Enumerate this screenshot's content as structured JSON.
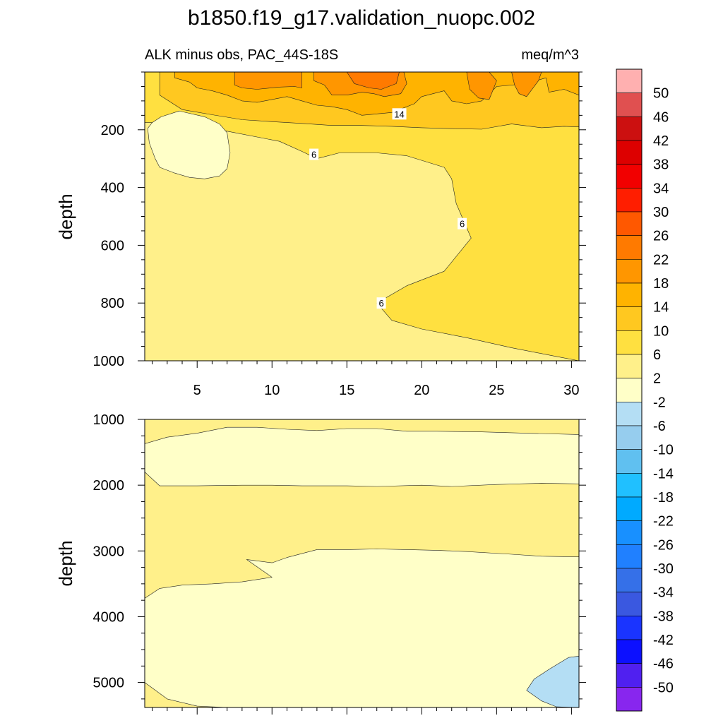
{
  "title": "b1850.f19_g17.validation_nuopc.002",
  "chart_data": [
    {
      "type": "heatmap",
      "subplot": "upper",
      "subtitle_left": "ALK minus obs, PAC_44S-18S",
      "subtitle_right": "meq/m^3",
      "xlabel": "",
      "ylabel": "depth",
      "xlim": [
        1.5,
        30.5
      ],
      "ylim": [
        1000,
        0
      ],
      "xticks": [
        5,
        10,
        15,
        20,
        25,
        30
      ],
      "xtick_labels": [
        "5",
        "10",
        "15",
        "20",
        "25",
        "30"
      ],
      "yticks": [
        200,
        400,
        600,
        800,
        1000
      ],
      "ytick_labels": [
        "200",
        "400",
        "600",
        "800",
        "1000"
      ],
      "contour_labels": [
        {
          "text": "14",
          "x": 18.5,
          "y": 145
        },
        {
          "text": "6",
          "x": 12.8,
          "y": 285
        },
        {
          "text": "6",
          "x": 22.7,
          "y": 525
        },
        {
          "text": "6",
          "x": 17.3,
          "y": 800
        }
      ],
      "regions": [
        {
          "range": "2 to 6",
          "points": [
            [
              1.5,
              0
            ],
            [
              30.5,
              0
            ],
            [
              30.5,
              1000
            ],
            [
              1.5,
              1000
            ]
          ]
        },
        {
          "range": "6 to 10",
          "points": [
            [
              1.5,
              0
            ],
            [
              30.5,
              0
            ],
            [
              30.5,
              1000
            ],
            [
              29,
              985
            ],
            [
              26,
              955
            ],
            [
              23,
              920
            ],
            [
              20,
              890
            ],
            [
              18,
              860
            ],
            [
              17,
              800
            ],
            [
              19,
              740
            ],
            [
              21.5,
              690
            ],
            [
              23.3,
              575
            ],
            [
              22.3,
              455
            ],
            [
              22,
              370
            ],
            [
              21.5,
              330
            ],
            [
              19,
              290
            ],
            [
              17,
              280
            ],
            [
              14.5,
              280
            ],
            [
              13,
              300
            ],
            [
              12,
              275
            ],
            [
              10.5,
              240
            ],
            [
              7,
              205
            ],
            [
              4,
              175
            ],
            [
              1.5,
              175
            ]
          ]
        },
        {
          "range": "10 to 14",
          "points": [
            [
              1.5,
              0
            ],
            [
              30.5,
              0
            ],
            [
              30.5,
              190
            ],
            [
              29.5,
              188
            ],
            [
              28,
              193
            ],
            [
              26,
              180
            ],
            [
              24,
              198
            ],
            [
              22,
              196
            ],
            [
              20,
              193
            ],
            [
              18,
              188
            ],
            [
              16,
              185
            ],
            [
              14,
              185
            ],
            [
              12,
              178
            ],
            [
              10,
              172
            ],
            [
              8,
              165
            ],
            [
              6,
              148
            ],
            [
              4,
              130
            ],
            [
              2.5,
              80
            ],
            [
              2.5,
              0
            ]
          ]
        },
        {
          "range": "14 to 18",
          "points": [
            [
              3.5,
              0
            ],
            [
              30.5,
              0
            ],
            [
              30.5,
              80
            ],
            [
              29.5,
              60
            ],
            [
              28.5,
              70
            ],
            [
              28.3,
              20
            ],
            [
              27,
              40
            ],
            [
              25,
              50
            ],
            [
              24,
              100
            ],
            [
              23,
              110
            ],
            [
              22,
              100
            ],
            [
              21.5,
              65
            ],
            [
              20,
              85
            ],
            [
              19.5,
              110
            ],
            [
              18,
              140
            ],
            [
              17,
              145
            ],
            [
              16,
              150
            ],
            [
              15,
              130
            ],
            [
              14,
              120
            ],
            [
              13,
              115
            ],
            [
              12,
              100
            ],
            [
              11,
              85
            ],
            [
              10,
              95
            ],
            [
              9,
              105
            ],
            [
              8,
              100
            ],
            [
              7,
              80
            ],
            [
              6,
              65
            ],
            [
              5,
              55
            ],
            [
              4.5,
              35
            ],
            [
              3.5,
              20
            ]
          ]
        },
        {
          "range": "18 to 22",
          "points": [
            [
              7.5,
              0
            ],
            [
              12,
              0
            ],
            [
              12,
              55
            ],
            [
              11.5,
              50
            ],
            [
              10.5,
              52
            ],
            [
              9,
              60
            ],
            [
              8,
              55
            ],
            [
              7.5,
              45
            ]
          ]
        },
        {
          "range": "18 to 22",
          "points": [
            [
              12.8,
              0
            ],
            [
              18.8,
              0
            ],
            [
              19,
              40
            ],
            [
              18.6,
              75
            ],
            [
              17.5,
              85
            ],
            [
              16.8,
              75
            ],
            [
              16,
              70
            ],
            [
              15,
              80
            ],
            [
              14,
              80
            ],
            [
              13.5,
              45
            ],
            [
              12.8,
              30
            ]
          ]
        },
        {
          "range": "18 to 22",
          "points": [
            [
              23,
              0
            ],
            [
              24.5,
              0
            ],
            [
              25,
              30
            ],
            [
              24.7,
              70
            ],
            [
              24.5,
              95
            ],
            [
              23.8,
              90
            ],
            [
              23.2,
              60
            ]
          ]
        },
        {
          "range": "18 to 22",
          "points": [
            [
              26,
              0
            ],
            [
              28,
              0
            ],
            [
              27.8,
              30
            ],
            [
              27,
              85
            ],
            [
              26.5,
              75
            ],
            [
              26.2,
              45
            ]
          ]
        },
        {
          "range": "22 to 26",
          "points": [
            [
              15,
              0
            ],
            [
              18.5,
              0
            ],
            [
              18.3,
              40
            ],
            [
              17.3,
              60
            ],
            [
              16.5,
              55
            ],
            [
              15.5,
              40
            ]
          ]
        },
        {
          "range": "-2 to 2",
          "points": [
            [
              2,
              175
            ],
            [
              2.6,
              155
            ],
            [
              3.8,
              135
            ],
            [
              5.5,
              155
            ],
            [
              6.5,
              180
            ],
            [
              7,
              210
            ],
            [
              7.2,
              280
            ],
            [
              7,
              335
            ],
            [
              6.5,
              360
            ],
            [
              5.5,
              370
            ],
            [
              4.5,
              365
            ],
            [
              3.5,
              350
            ],
            [
              2.5,
              330
            ],
            [
              2.2,
              300
            ],
            [
              1.8,
              245
            ],
            [
              1.7,
              195
            ]
          ]
        }
      ]
    },
    {
      "type": "heatmap",
      "subplot": "lower",
      "xlabel": "",
      "ylabel": "depth",
      "xlim": [
        1.5,
        30.5
      ],
      "ylim": [
        5380,
        1000
      ],
      "yticks": [
        1000,
        2000,
        3000,
        4000,
        5000
      ],
      "ytick_labels": [
        "1000",
        "2000",
        "3000",
        "4000",
        "5000"
      ],
      "regions": [
        {
          "range": "2 to 6",
          "points": [
            [
              1.5,
              1000
            ],
            [
              30.5,
              1000
            ],
            [
              30.5,
              5380
            ],
            [
              1.5,
              5380
            ]
          ]
        },
        {
          "range": "-2 to 2",
          "points": [
            [
              1.5,
              1370
            ],
            [
              3,
              1270
            ],
            [
              5,
              1210
            ],
            [
              7,
              1120
            ],
            [
              9,
              1120
            ],
            [
              11,
              1150
            ],
            [
              13,
              1170
            ],
            [
              15,
              1140
            ],
            [
              17,
              1140
            ],
            [
              19,
              1180
            ],
            [
              21,
              1180
            ],
            [
              24,
              1190
            ],
            [
              27,
              1210
            ],
            [
              30.5,
              1230
            ],
            [
              30.5,
              1980
            ],
            [
              28,
              1970
            ],
            [
              25,
              1990
            ],
            [
              22,
              2020
            ],
            [
              20,
              2000
            ],
            [
              17,
              2020
            ],
            [
              15,
              2010
            ],
            [
              12,
              2010
            ],
            [
              10,
              2000
            ],
            [
              8,
              2000
            ],
            [
              5,
              2010
            ],
            [
              2.5,
              2010
            ],
            [
              1.5,
              1800
            ]
          ]
        },
        {
          "range": "-2 to 2",
          "points": [
            [
              1.5,
              3720
            ],
            [
              2.5,
              3570
            ],
            [
              4,
              3520
            ],
            [
              6,
              3500
            ],
            [
              8,
              3470
            ],
            [
              10,
              3400
            ],
            [
              8.3,
              3130
            ],
            [
              10,
              3180
            ],
            [
              11,
              3100
            ],
            [
              13,
              2980
            ],
            [
              15,
              2980
            ],
            [
              17,
              2970
            ],
            [
              19,
              2980
            ],
            [
              21,
              2990
            ],
            [
              23,
              3010
            ],
            [
              26,
              3050
            ],
            [
              28,
              3080
            ],
            [
              30.5,
              3090
            ],
            [
              30.5,
              5380
            ],
            [
              7,
              5380
            ],
            [
              5,
              5360
            ],
            [
              3,
              5250
            ],
            [
              1.5,
              5000
            ]
          ]
        },
        {
          "range": "-6 to -2",
          "points": [
            [
              30.5,
              4600
            ],
            [
              29.8,
              4620
            ],
            [
              28.5,
              4800
            ],
            [
              27.5,
              4950
            ],
            [
              27,
              5120
            ],
            [
              28,
              5280
            ],
            [
              29,
              5370
            ],
            [
              30.5,
              5380
            ]
          ]
        }
      ]
    }
  ],
  "colorbar": {
    "labels": [
      "50",
      "46",
      "42",
      "38",
      "34",
      "30",
      "26",
      "22",
      "18",
      "14",
      "10",
      "6",
      "2",
      "-2",
      "-6",
      "-10",
      "-14",
      "-18",
      "-22",
      "-26",
      "-30",
      "-34",
      "-38",
      "-42",
      "-46",
      "-50"
    ],
    "colors": [
      "#ffb0b0",
      "#e05050",
      "#cc1010",
      "#dd0000",
      "#f20000",
      "#ff1e00",
      "#ff5800",
      "#ff7a00",
      "#ff9600",
      "#ffb300",
      "#ffc820",
      "#ffe040",
      "#fff08a",
      "#ffffc8",
      "#b4def4",
      "#96cdee",
      "#60c0f0",
      "#20c0ff",
      "#00aaff",
      "#1890ff",
      "#2080ff",
      "#3570e8",
      "#3a58e0",
      "#1a34ff",
      "#0c10ff",
      "#5020f0",
      "#8826ee"
    ]
  },
  "range_colors": {
    "-6 to -2": "#b4def4",
    "-2 to 2": "#ffffc8",
    "2 to 6": "#fff08a",
    "6 to 10": "#ffe040",
    "10 to 14": "#ffc820",
    "14 to 18": "#ffb300",
    "18 to 22": "#ff9600",
    "22 to 26": "#ff7a00"
  }
}
